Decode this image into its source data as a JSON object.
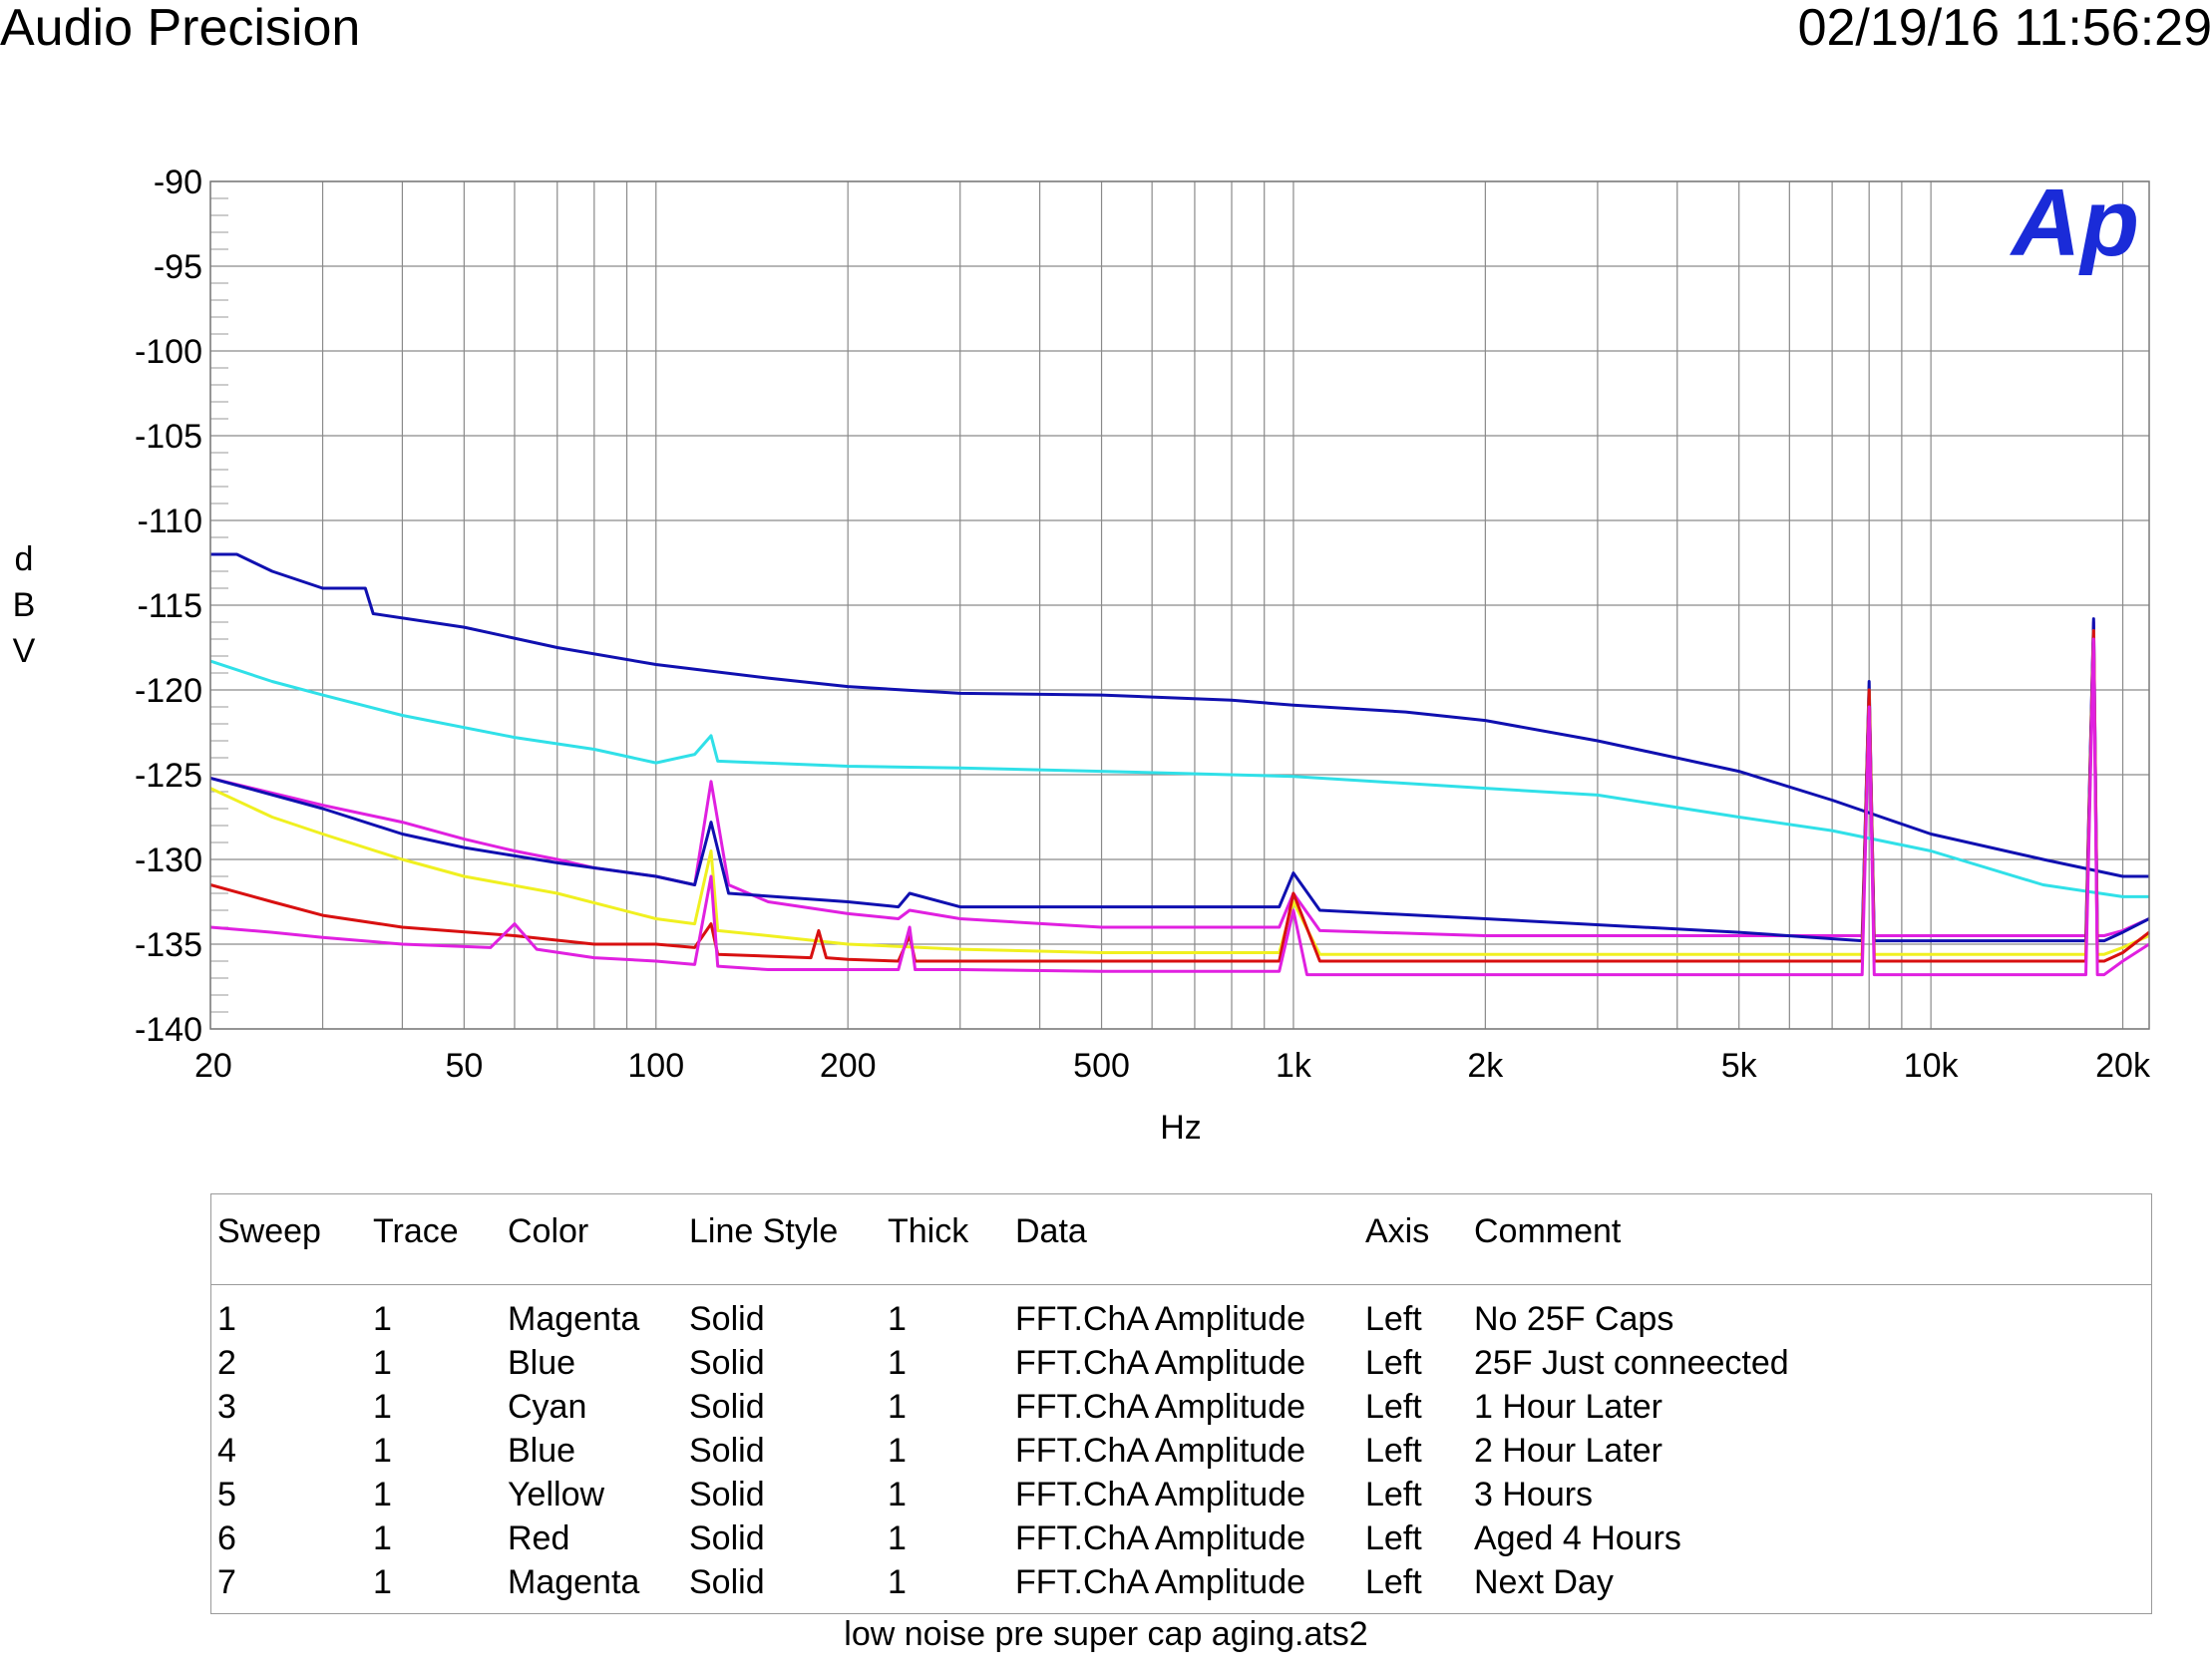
{
  "header": {
    "title": "Audio Precision",
    "timestamp": "02/19/16 11:56:29"
  },
  "logo": {
    "text": "Ap",
    "color": "#1a2bd8"
  },
  "chart_data": {
    "type": "line",
    "xlabel": "Hz",
    "ylabel": "dBV",
    "xscale": "log",
    "xlim": [
      20,
      22000
    ],
    "ylim": [
      -140,
      -90
    ],
    "grid": true,
    "x_ticks": [
      {
        "value": 20,
        "label": "20"
      },
      {
        "value": 50,
        "label": "50"
      },
      {
        "value": 100,
        "label": "100"
      },
      {
        "value": 200,
        "label": "200"
      },
      {
        "value": 500,
        "label": "500"
      },
      {
        "value": 1000,
        "label": "1k"
      },
      {
        "value": 2000,
        "label": "2k"
      },
      {
        "value": 5000,
        "label": "5k"
      },
      {
        "value": 10000,
        "label": "10k"
      },
      {
        "value": 20000,
        "label": "20k"
      }
    ],
    "y_ticks": [
      -90,
      -95,
      -100,
      -105,
      -110,
      -115,
      -120,
      -125,
      -130,
      -135,
      -140
    ],
    "series": [
      {
        "name": "No 25F Caps",
        "color": "#e020e0",
        "x": [
          20,
          30,
          40,
          50,
          60,
          70,
          80,
          100,
          115,
          122,
          130,
          150,
          200,
          240,
          250,
          300,
          500,
          800,
          950,
          1000,
          1100,
          2000,
          5000,
          7800,
          8000,
          8150,
          8500,
          10000,
          17500,
          18000,
          18250,
          18700,
          20000,
          22000
        ],
        "y": [
          -125.2,
          -126.8,
          -127.8,
          -128.8,
          -129.5,
          -130,
          -130.5,
          -131,
          -131.5,
          -125.4,
          -131.5,
          -132.5,
          -133.2,
          -133.5,
          -133,
          -133.5,
          -134,
          -134,
          -134,
          -132,
          -134.2,
          -134.5,
          -134.5,
          -134.5,
          -120,
          -134.5,
          -134.5,
          -134.5,
          -134.5,
          -116,
          -134.5,
          -134.5,
          -134.2,
          -133.5
        ]
      },
      {
        "name": "25F Just conneected",
        "color": "#1010b0",
        "x": [
          20,
          22,
          25,
          30,
          35,
          36,
          50,
          70,
          100,
          150,
          200,
          300,
          500,
          800,
          1000,
          1500,
          2000,
          3000,
          5000,
          7000,
          10000,
          15000,
          20000,
          22000
        ],
        "y": [
          -112,
          -112,
          -113,
          -114,
          -114,
          -115.5,
          -116.3,
          -117.5,
          -118.5,
          -119.3,
          -119.8,
          -120.2,
          -120.3,
          -120.6,
          -120.9,
          -121.3,
          -121.8,
          -123,
          -124.8,
          -126.5,
          -128.5,
          -130,
          -131,
          -131
        ]
      },
      {
        "name": "1 Hour Later",
        "color": "#30e0e8",
        "x": [
          20,
          25,
          30,
          40,
          60,
          80,
          100,
          115,
          122,
          125,
          200,
          300,
          500,
          1000,
          2000,
          3000,
          5000,
          7000,
          10000,
          15000,
          20000,
          22000
        ],
        "y": [
          -118.3,
          -119.5,
          -120.3,
          -121.5,
          -122.8,
          -123.5,
          -124.3,
          -123.8,
          -122.7,
          -124.2,
          -124.5,
          -124.6,
          -124.8,
          -125.1,
          -125.8,
          -126.2,
          -127.5,
          -128.3,
          -129.5,
          -131.5,
          -132.2,
          -132.2
        ]
      },
      {
        "name": "2 Hour Later",
        "color": "#1010b0",
        "x": [
          20,
          30,
          40,
          50,
          70,
          100,
          115,
          122,
          130,
          200,
          240,
          250,
          300,
          500,
          800,
          950,
          1000,
          1100,
          2000,
          5000,
          7800,
          8000,
          8150,
          8500,
          10000,
          17500,
          18000,
          18250,
          18700,
          20000,
          22000
        ],
        "y": [
          -125.2,
          -127,
          -128.5,
          -129.3,
          -130.2,
          -131,
          -131.5,
          -127.8,
          -132,
          -132.5,
          -132.8,
          -132,
          -132.8,
          -132.8,
          -132.8,
          -132.8,
          -130.8,
          -133,
          -133.5,
          -134.3,
          -134.8,
          -119.5,
          -134.8,
          -134.8,
          -134.8,
          -134.8,
          -115.8,
          -134.8,
          -134.8,
          -134.3,
          -133.5
        ]
      },
      {
        "name": "3 Hours",
        "color": "#f0f020",
        "x": [
          20,
          25,
          30,
          40,
          50,
          70,
          100,
          115,
          122,
          125,
          150,
          200,
          300,
          500,
          950,
          1000,
          1100,
          2000,
          5000,
          7800,
          8000,
          8150,
          8500,
          10000,
          17500,
          18000,
          18250,
          18700,
          20000,
          22000
        ],
        "y": [
          -125.8,
          -127.5,
          -128.5,
          -130,
          -131,
          -132,
          -133.5,
          -133.8,
          -129.5,
          -134.2,
          -134.5,
          -135,
          -135.3,
          -135.5,
          -135.5,
          -132.5,
          -135.6,
          -135.6,
          -135.6,
          -135.6,
          -120,
          -135.6,
          -135.6,
          -135.6,
          -135.6,
          -116.5,
          -135.6,
          -135.6,
          -135.2,
          -134.5
        ]
      },
      {
        "name": "Aged 4 Hours",
        "color": "#d81010",
        "x": [
          20,
          25,
          30,
          40,
          60,
          80,
          100,
          115,
          122,
          125,
          175,
          180,
          185,
          200,
          240,
          250,
          255,
          300,
          500,
          950,
          1000,
          1100,
          2000,
          5000,
          7800,
          8000,
          8150,
          8500,
          10000,
          17500,
          18000,
          18250,
          18700,
          20000,
          22000
        ],
        "y": [
          -131.5,
          -132.5,
          -133.3,
          -134,
          -134.5,
          -135,
          -135,
          -135.2,
          -133.8,
          -135.6,
          -135.8,
          -134.2,
          -135.8,
          -135.9,
          -136,
          -134.5,
          -136,
          -136,
          -136,
          -136,
          -132,
          -136,
          -136,
          -136,
          -136,
          -120,
          -136,
          -136,
          -136,
          -136,
          -116.5,
          -136,
          -136,
          -135.5,
          -134.3
        ]
      },
      {
        "name": "Next Day",
        "color": "#e020e0",
        "x": [
          20,
          25,
          30,
          40,
          55,
          60,
          65,
          80,
          100,
          115,
          122,
          125,
          150,
          240,
          250,
          255,
          300,
          500,
          950,
          1000,
          1050,
          2000,
          5000,
          7800,
          8000,
          8150,
          8500,
          10000,
          17500,
          18000,
          18250,
          18700,
          20000,
          22000
        ],
        "y": [
          -134,
          -134.3,
          -134.6,
          -135,
          -135.2,
          -133.8,
          -135.3,
          -135.8,
          -136,
          -136.2,
          -131,
          -136.3,
          -136.5,
          -136.5,
          -134,
          -136.5,
          -136.5,
          -136.6,
          -136.6,
          -133,
          -136.8,
          -136.8,
          -136.8,
          -136.8,
          -121,
          -136.8,
          -136.8,
          -136.8,
          -136.8,
          -117,
          -136.8,
          -136.8,
          -136,
          -135
        ]
      }
    ]
  },
  "legend_table": {
    "columns": [
      "Sweep",
      "Trace",
      "Color",
      "Line Style",
      "Thick",
      "Data",
      "Axis",
      "Comment"
    ],
    "rows": [
      [
        "1",
        "1",
        "Magenta",
        "Solid",
        "1",
        "FFT.ChA Amplitude",
        "Left",
        "No 25F Caps"
      ],
      [
        "2",
        "1",
        "Blue",
        "Solid",
        "1",
        "FFT.ChA Amplitude",
        "Left",
        "25F Just conneected"
      ],
      [
        "3",
        "1",
        "Cyan",
        "Solid",
        "1",
        "FFT.ChA Amplitude",
        "Left",
        "1 Hour Later"
      ],
      [
        "4",
        "1",
        "Blue",
        "Solid",
        "1",
        "FFT.ChA Amplitude",
        "Left",
        "2 Hour Later"
      ],
      [
        "5",
        "1",
        "Yellow",
        "Solid",
        "1",
        "FFT.ChA Amplitude",
        "Left",
        "3 Hours"
      ],
      [
        "6",
        "1",
        "Red",
        "Solid",
        "1",
        "FFT.ChA Amplitude",
        "Left",
        "Aged 4 Hours"
      ],
      [
        "7",
        "1",
        "Magenta",
        "Solid",
        "1",
        "FFT.ChA Amplitude",
        "Left",
        "Next Day"
      ]
    ]
  },
  "footer": {
    "filename": "low noise pre super cap aging.ats2"
  }
}
